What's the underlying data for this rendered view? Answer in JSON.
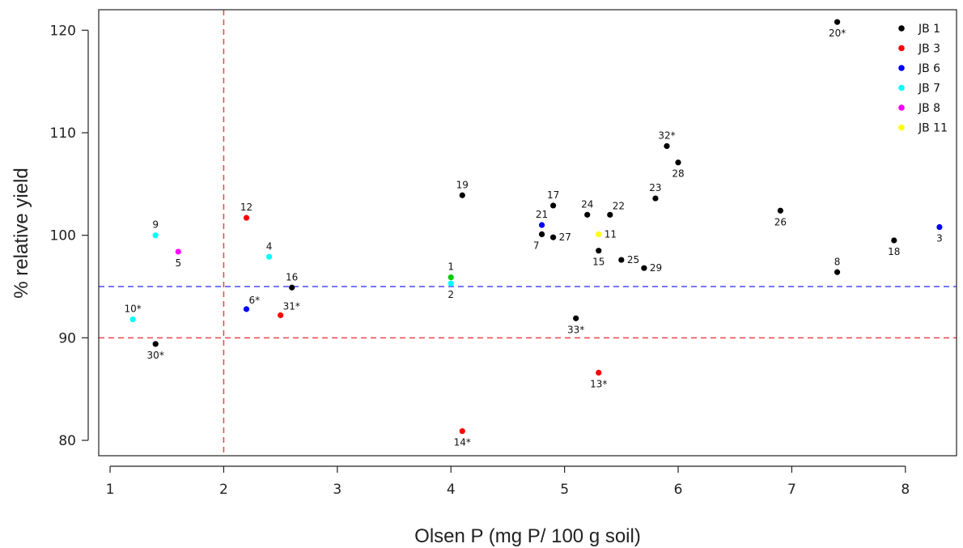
{
  "chart_data": {
    "type": "scatter",
    "xlabel": "Olsen P (mg P/ 100 g soil)",
    "ylabel": "% relative yield",
    "xlim": [
      0.9,
      8.45
    ],
    "ylim": [
      78.5,
      122
    ],
    "xticks": [
      1,
      2,
      3,
      4,
      5,
      6,
      7,
      8
    ],
    "yticks": [
      80,
      90,
      100,
      110,
      120
    ],
    "grid": false,
    "legend_position": "top-right",
    "reference_lines": [
      {
        "orientation": "vertical",
        "value": 2,
        "color": "#e8474c",
        "style": "dashed"
      },
      {
        "orientation": "horizontal",
        "value": 90,
        "color": "#e8474c",
        "style": "dashed"
      },
      {
        "orientation": "horizontal",
        "value": 95,
        "color": "#4a4cf0",
        "style": "dashed"
      }
    ],
    "series": [
      {
        "name": "JB 1",
        "color": "#000000",
        "points": [
          {
            "x": 1.4,
            "y": 89.4,
            "label": "30*",
            "pos": "below"
          },
          {
            "x": 2.6,
            "y": 94.9,
            "label": "16",
            "pos": "above"
          },
          {
            "x": 4.1,
            "y": 103.9,
            "label": "19",
            "pos": "above"
          },
          {
            "x": 4.8,
            "y": 100.1,
            "label": "7",
            "pos": "belowleft"
          },
          {
            "x": 4.9,
            "y": 102.9,
            "label": "17",
            "pos": "above"
          },
          {
            "x": 4.9,
            "y": 99.8,
            "label": "27",
            "pos": "right"
          },
          {
            "x": 5.1,
            "y": 91.9,
            "label": "33*",
            "pos": "below"
          },
          {
            "x": 5.2,
            "y": 102.0,
            "label": "24",
            "pos": "above"
          },
          {
            "x": 5.3,
            "y": 98.5,
            "label": "15",
            "pos": "below"
          },
          {
            "x": 5.4,
            "y": 102.0,
            "label": "22",
            "pos": "aboveright"
          },
          {
            "x": 5.5,
            "y": 97.6,
            "label": "25",
            "pos": "right"
          },
          {
            "x": 5.7,
            "y": 96.8,
            "label": "29",
            "pos": "right"
          },
          {
            "x": 5.8,
            "y": 103.6,
            "label": "23",
            "pos": "above"
          },
          {
            "x": 5.9,
            "y": 108.7,
            "label": "32*",
            "pos": "above",
            "label_color": "#ff0000"
          },
          {
            "x": 6.0,
            "y": 107.1,
            "label": "28",
            "pos": "below"
          },
          {
            "x": 6.9,
            "y": 102.4,
            "label": "26",
            "pos": "below"
          },
          {
            "x": 7.4,
            "y": 120.8,
            "label": "20*",
            "pos": "below",
            "label_color": "#ff0000"
          },
          {
            "x": 7.4,
            "y": 96.4,
            "label": "8",
            "pos": "above"
          },
          {
            "x": 7.9,
            "y": 99.5,
            "label": "18",
            "pos": "below"
          }
        ]
      },
      {
        "name": "JB 3",
        "color": "#ff0000",
        "points": [
          {
            "x": 2.2,
            "y": 101.7,
            "label": "12",
            "pos": "above"
          },
          {
            "x": 2.5,
            "y": 92.2,
            "label": "31*",
            "pos": "aboveright"
          },
          {
            "x": 4.1,
            "y": 80.9,
            "label": "14*",
            "pos": "below"
          },
          {
            "x": 5.3,
            "y": 86.6,
            "label": "13*",
            "pos": "below"
          }
        ]
      },
      {
        "name": "JB 6",
        "color": "#0000ff",
        "points": [
          {
            "x": 2.2,
            "y": 92.8,
            "label": "6*",
            "pos": "aboveright"
          },
          {
            "x": 4.8,
            "y": 101.0,
            "label": "21",
            "pos": "above"
          },
          {
            "x": 8.3,
            "y": 100.8,
            "label": "3",
            "pos": "below"
          }
        ]
      },
      {
        "name": "JB 7",
        "color": "#00ffff",
        "points": [
          {
            "x": 1.2,
            "y": 91.8,
            "label": "10*",
            "pos": "above"
          },
          {
            "x": 1.4,
            "y": 100.0,
            "label": "9",
            "pos": "above"
          },
          {
            "x": 2.4,
            "y": 97.9,
            "label": "4",
            "pos": "above"
          },
          {
            "x": 4.0,
            "y": 95.3,
            "label": "2",
            "pos": "below"
          }
        ]
      },
      {
        "name": "JB 8",
        "color": "#ff00ff",
        "points": [
          {
            "x": 1.6,
            "y": 98.4,
            "label": "5",
            "pos": "below"
          }
        ]
      },
      {
        "name": "JB 11",
        "color": "#ffff00",
        "points": [
          {
            "x": 5.3,
            "y": 100.1,
            "label": "11",
            "pos": "right"
          }
        ]
      },
      {
        "name": "",
        "color": "#00cc00",
        "points": [
          {
            "x": 4.0,
            "y": 95.9,
            "label": "1",
            "pos": "above"
          }
        ]
      }
    ]
  }
}
